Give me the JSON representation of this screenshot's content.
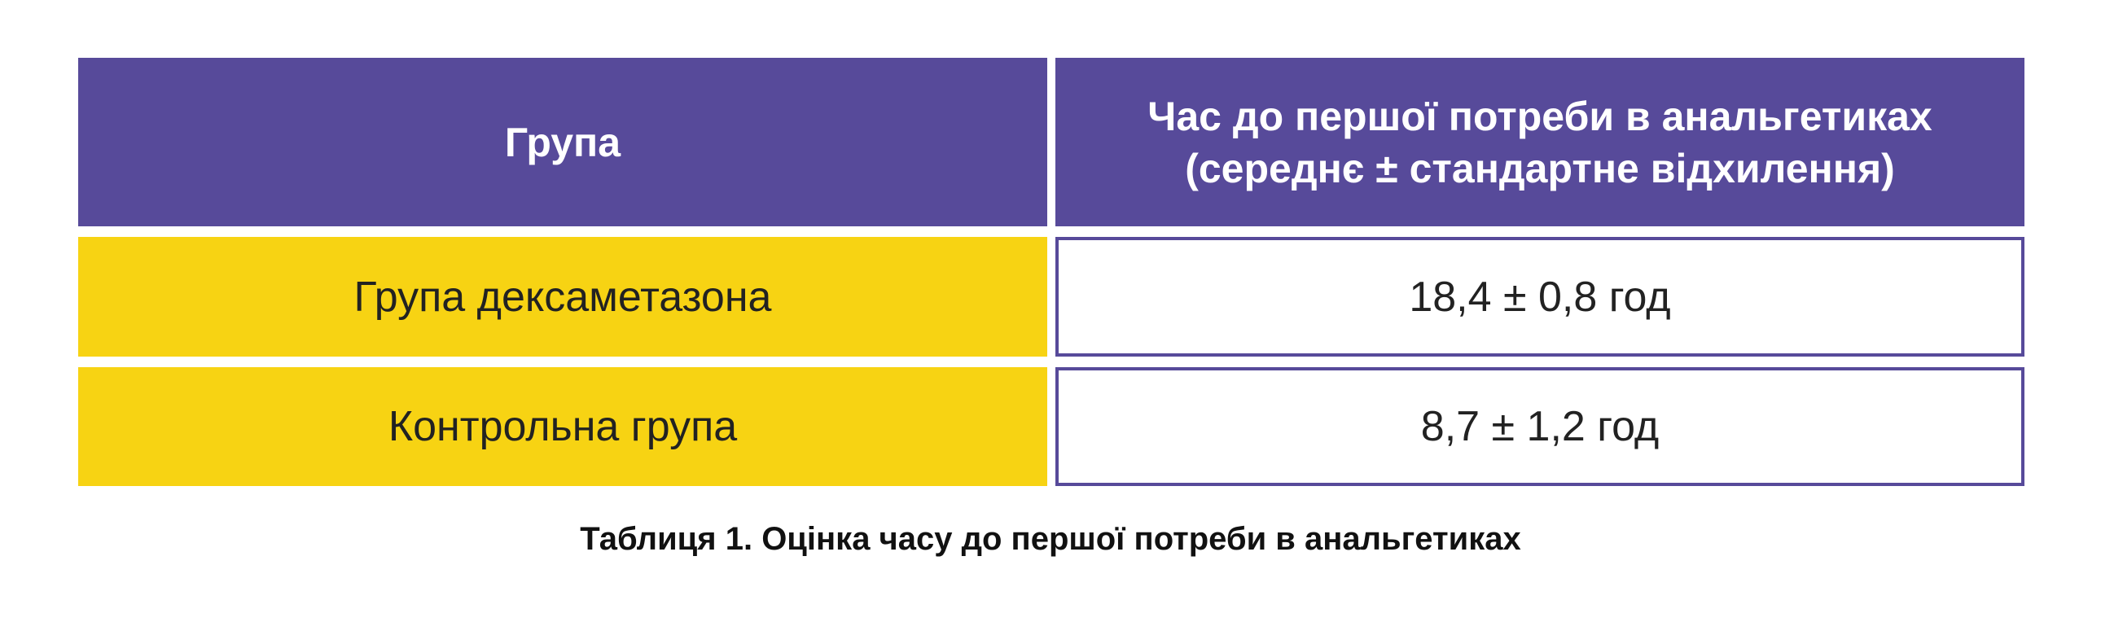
{
  "table": {
    "headers": [
      "Група",
      "Час до першої потреби в анальгетиках (середнє ± стандартне відхилення)"
    ],
    "rows": [
      {
        "group": "Група дексаметазона",
        "value": "18,4 ± 0,8 год"
      },
      {
        "group": "Контрольна група",
        "value": "8,7 ± 1,2 год"
      }
    ]
  },
  "caption": "Таблиця 1. Оцінка часу до першої потреби в анальгетиках",
  "colors": {
    "header": "#574A9A",
    "group_cell": "#F7D313",
    "value_border": "#574A9A"
  }
}
